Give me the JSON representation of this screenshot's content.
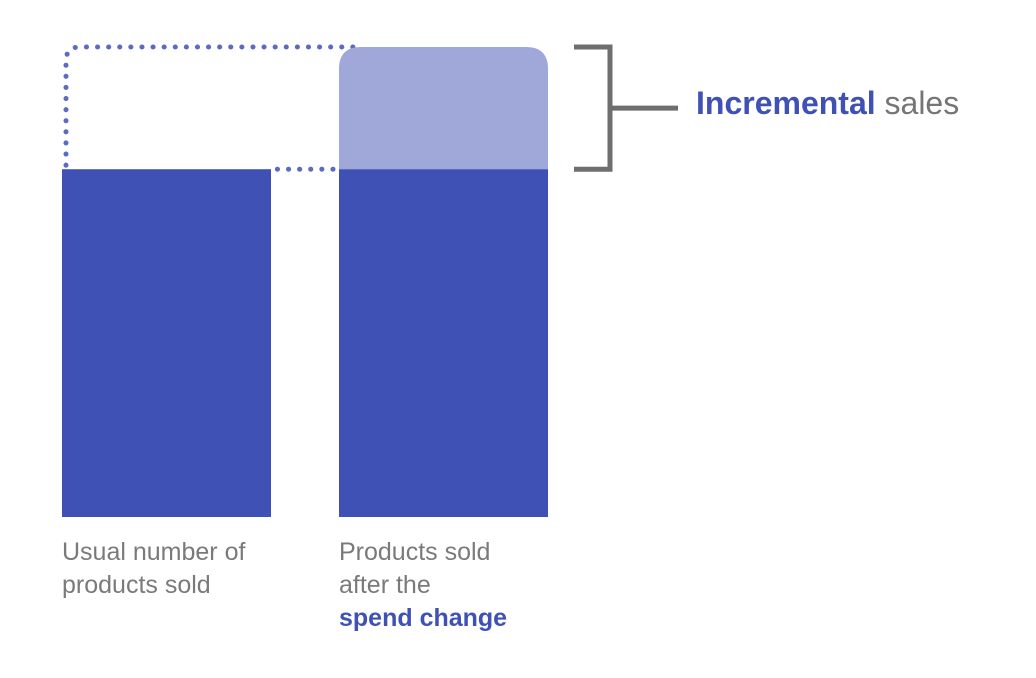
{
  "colors": {
    "baseline_bar": "#3f51b5",
    "increment_segment": "#a0a8da",
    "dotted_outline": "#5c6bc0",
    "bracket": "#6e6e6e",
    "caption_text": "#7a7a7a",
    "emphasis_text": "#3f51b5"
  },
  "bars": {
    "usual": {
      "caption_lines": [
        "Usual number of",
        "products sold"
      ]
    },
    "after_change": {
      "caption_lines": [
        "Products sold",
        "after the"
      ],
      "caption_emphasis": "spend change"
    }
  },
  "annotation": {
    "emphasis": "Incremental",
    "rest": " sales"
  },
  "levels": {
    "baseline": 0.74,
    "after_change_total": 1.0
  }
}
